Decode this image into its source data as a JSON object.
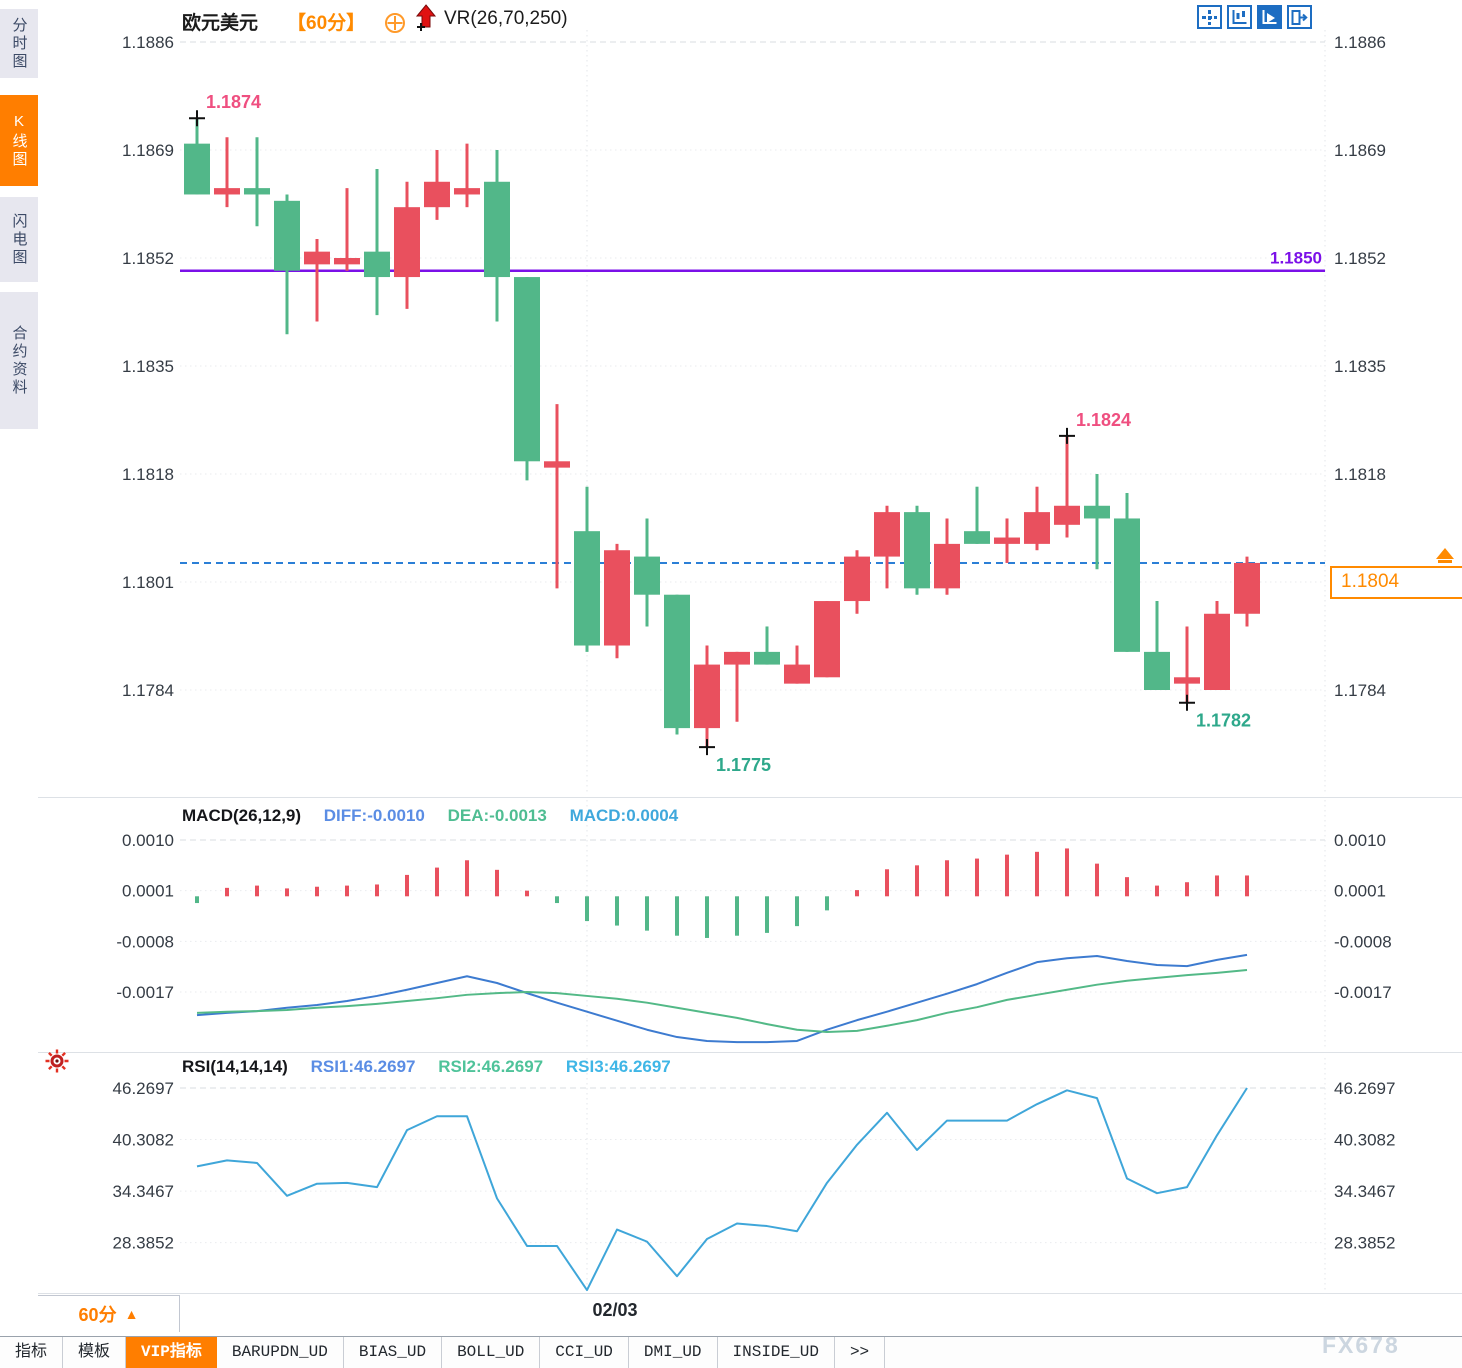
{
  "window": {
    "title": "欧元美元 60分 K线图"
  },
  "colors": {
    "up_red": "#e9505e",
    "down_green": "#52b789",
    "accent_orange": "#ff7e00",
    "label_orange": "#ff8a00",
    "purple_line": "#7b10e8",
    "current_line_blue": "#2b7fd6",
    "diff_blue": "#3d7bd0",
    "dea_green": "#53b987",
    "rsi_blue": "#3fa6d9",
    "axis_text": "#353c45",
    "high_label_pink": "#ef4f80",
    "low_label_teal": "#2ea88b",
    "toolbar_blue": "#1d6dc2"
  },
  "sidebar": {
    "items": [
      {
        "label": "分时图",
        "active": false
      },
      {
        "label": "K线图",
        "active": true
      },
      {
        "label": "闪电图",
        "active": false
      },
      {
        "label": "合约资料",
        "active": false
      }
    ]
  },
  "header": {
    "symbol": "欧元美元",
    "timeframe": "【60分】",
    "indicator": "VR(26,70,250)",
    "icons": [
      "plus-circle-icon",
      "red-up-arrow-icon"
    ],
    "toolbar_icons": [
      "crosshair-move-icon",
      "axis-candles-icon",
      "axis-play-icon",
      "pane-exit-icon"
    ]
  },
  "price_pane": {
    "axis_labels": [
      "1.1886",
      "1.1869",
      "1.1852",
      "1.1835",
      "1.1818",
      "1.1801",
      "1.1784"
    ],
    "axis_values": [
      1.1886,
      1.1869,
      1.1852,
      1.1835,
      1.1818,
      1.1801,
      1.1784
    ],
    "hline": {
      "value": 1.185,
      "label": "1.1850"
    },
    "current": {
      "value": 1.1804,
      "label": "1.1804"
    },
    "annotations": [
      {
        "index": 0,
        "price": 1.1874,
        "label": "1.1874",
        "side": "above",
        "type": "high"
      },
      {
        "index": 29,
        "price": 1.1824,
        "label": "1.1824",
        "side": "above",
        "type": "high"
      },
      {
        "index": 17,
        "price": 1.1775,
        "label": "1.1775",
        "side": "below",
        "type": "low"
      },
      {
        "index": 33,
        "price": 1.1782,
        "label": "1.1782",
        "side": "below",
        "type": "low"
      }
    ],
    "session_divider_index": 13
  },
  "macd_pane": {
    "name": "MACD(26,12,9)",
    "diff_label": "DIFF:-0.0010",
    "dea_label": "DEA:-0.0013",
    "macd_label": "MACD:0.0004",
    "axis_labels": [
      "0.0010",
      "0.0001",
      "-0.0008",
      "-0.0017"
    ],
    "axis_values": [
      0.001,
      0.0001,
      -0.0008,
      -0.0017
    ]
  },
  "rsi_pane": {
    "name": "RSI(14,14,14)",
    "rsi1_label": "RSI1:46.2697",
    "rsi2_label": "RSI2:46.2697",
    "rsi3_label": "RSI3:46.2697",
    "axis_labels": [
      "46.2697",
      "40.3082",
      "34.3467",
      "28.3852"
    ],
    "axis_values": [
      46.2697,
      40.3082,
      34.3467,
      28.3852
    ]
  },
  "footer": {
    "timeframe_label": "60分",
    "timeframe_arrow": "▲",
    "date_label": "02/03",
    "tabs": [
      {
        "label": "指标",
        "active": false
      },
      {
        "label": "模板",
        "active": false
      },
      {
        "label": "VIP指标",
        "active": true
      },
      {
        "label": "BARUPDN_UD",
        "active": false
      },
      {
        "label": "BIAS_UD",
        "active": false
      },
      {
        "label": "BOLL_UD",
        "active": false
      },
      {
        "label": "CCI_UD",
        "active": false
      },
      {
        "label": "DMI_UD",
        "active": false
      },
      {
        "label": "INSIDE_UD",
        "active": false
      },
      {
        "label": ">>",
        "active": false
      }
    ],
    "watermark": "FX678"
  },
  "chart_data": {
    "type": "candlestick+macd+rsi",
    "title": "欧元美元 60分",
    "candles": {
      "columns": [
        "open",
        "high",
        "low",
        "close"
      ],
      "rows": [
        [
          1.187,
          1.1874,
          1.1862,
          1.1862
        ],
        [
          1.1862,
          1.1871,
          1.186,
          1.1863
        ],
        [
          1.1863,
          1.1871,
          1.1857,
          1.1862
        ],
        [
          1.1861,
          1.1862,
          1.184,
          1.185
        ],
        [
          1.1851,
          1.1855,
          1.1842,
          1.1853
        ],
        [
          1.1851,
          1.1863,
          1.185,
          1.1852
        ],
        [
          1.1853,
          1.1866,
          1.1843,
          1.1849
        ],
        [
          1.1849,
          1.1864,
          1.1844,
          1.186
        ],
        [
          1.186,
          1.1869,
          1.1858,
          1.1864
        ],
        [
          1.1862,
          1.187,
          1.186,
          1.1863
        ],
        [
          1.1864,
          1.1869,
          1.1842,
          1.1849
        ],
        [
          1.1849,
          1.1849,
          1.1817,
          1.182
        ],
        [
          1.1819,
          1.1829,
          1.18,
          1.182
        ],
        [
          1.1809,
          1.1816,
          1.179,
          1.1791
        ],
        [
          1.1791,
          1.1807,
          1.1789,
          1.1806
        ],
        [
          1.1805,
          1.1811,
          1.1794,
          1.1799
        ],
        [
          1.1799,
          1.1799,
          1.1777,
          1.1778
        ],
        [
          1.1778,
          1.1791,
          1.1775,
          1.1788
        ],
        [
          1.1788,
          1.179,
          1.1779,
          1.179
        ],
        [
          1.179,
          1.1794,
          1.1788,
          1.1788
        ],
        [
          1.1785,
          1.1791,
          1.1785,
          1.1788
        ],
        [
          1.1786,
          1.1798,
          1.1786,
          1.1798
        ],
        [
          1.1798,
          1.1806,
          1.1796,
          1.1805
        ],
        [
          1.1805,
          1.1813,
          1.18,
          1.1812
        ],
        [
          1.1812,
          1.1813,
          1.1799,
          1.18
        ],
        [
          1.18,
          1.1811,
          1.1799,
          1.1807
        ],
        [
          1.1809,
          1.1816,
          1.1807,
          1.1807
        ],
        [
          1.1807,
          1.1811,
          1.1804,
          1.1808
        ],
        [
          1.1807,
          1.1816,
          1.1806,
          1.1812
        ],
        [
          1.181,
          1.1824,
          1.1808,
          1.1813
        ],
        [
          1.1813,
          1.1818,
          1.1803,
          1.1811
        ],
        [
          1.1811,
          1.1815,
          1.179,
          1.179
        ],
        [
          1.179,
          1.1798,
          1.1784,
          1.1784
        ],
        [
          1.1785,
          1.1794,
          1.1782,
          1.1786
        ],
        [
          1.1784,
          1.1798,
          1.1784,
          1.1796
        ],
        [
          1.1796,
          1.1805,
          1.1794,
          1.1804
        ]
      ]
    },
    "macd": {
      "hist": [
        -0.00012,
        0.00015,
        0.00019,
        0.00014,
        0.00017,
        0.00019,
        0.00021,
        0.00038,
        0.00051,
        0.00064,
        0.00047,
        0.0001,
        -0.00012,
        -0.00044,
        -0.00052,
        -0.00061,
        -0.0007,
        -0.00074,
        -0.0007,
        -0.00065,
        -0.00053,
        -0.00025,
        0.00011,
        0.00048,
        0.00055,
        0.00064,
        0.00067,
        0.00074,
        0.00079,
        0.00085,
        0.00058,
        0.00034,
        0.00019,
        0.00025,
        0.00037,
        0.00037
      ],
      "diff": [
        -0.00211,
        -0.00207,
        -0.00204,
        -0.00198,
        -0.00193,
        -0.00186,
        -0.00177,
        -0.00166,
        -0.00154,
        -0.00142,
        -0.00154,
        -0.00172,
        -0.00189,
        -0.00205,
        -0.00221,
        -0.00237,
        -0.0025,
        -0.00257,
        -0.00259,
        -0.00259,
        -0.00257,
        -0.00237,
        -0.0022,
        -0.00205,
        -0.00189,
        -0.00173,
        -0.00156,
        -0.00136,
        -0.00117,
        -0.0011,
        -0.00106,
        -0.00115,
        -0.00122,
        -0.00124,
        -0.00113,
        -0.00104
      ],
      "dea": [
        -0.00207,
        -0.00205,
        -0.00204,
        -0.00202,
        -0.00198,
        -0.00195,
        -0.00191,
        -0.00186,
        -0.00181,
        -0.00175,
        -0.00172,
        -0.0017,
        -0.00172,
        -0.00177,
        -0.00182,
        -0.00189,
        -0.00198,
        -0.00207,
        -0.00216,
        -0.00227,
        -0.00237,
        -0.00241,
        -0.00239,
        -0.0023,
        -0.0022,
        -0.00207,
        -0.00197,
        -0.00184,
        -0.00175,
        -0.00166,
        -0.00157,
        -0.0015,
        -0.00145,
        -0.0014,
        -0.00136,
        -0.00131
      ]
    },
    "rsi": {
      "values": [
        37.2,
        37.9,
        37.6,
        33.8,
        35.2,
        35.3,
        34.8,
        41.4,
        43.0,
        43.0,
        33.5,
        28.0,
        28.0,
        22.9,
        29.9,
        28.5,
        24.5,
        28.8,
        30.6,
        30.3,
        29.7,
        35.3,
        39.7,
        43.4,
        39.1,
        42.5,
        42.5,
        42.5,
        44.4,
        46.0,
        45.1,
        35.8,
        34.1,
        34.8,
        40.8,
        46.2697
      ]
    }
  }
}
